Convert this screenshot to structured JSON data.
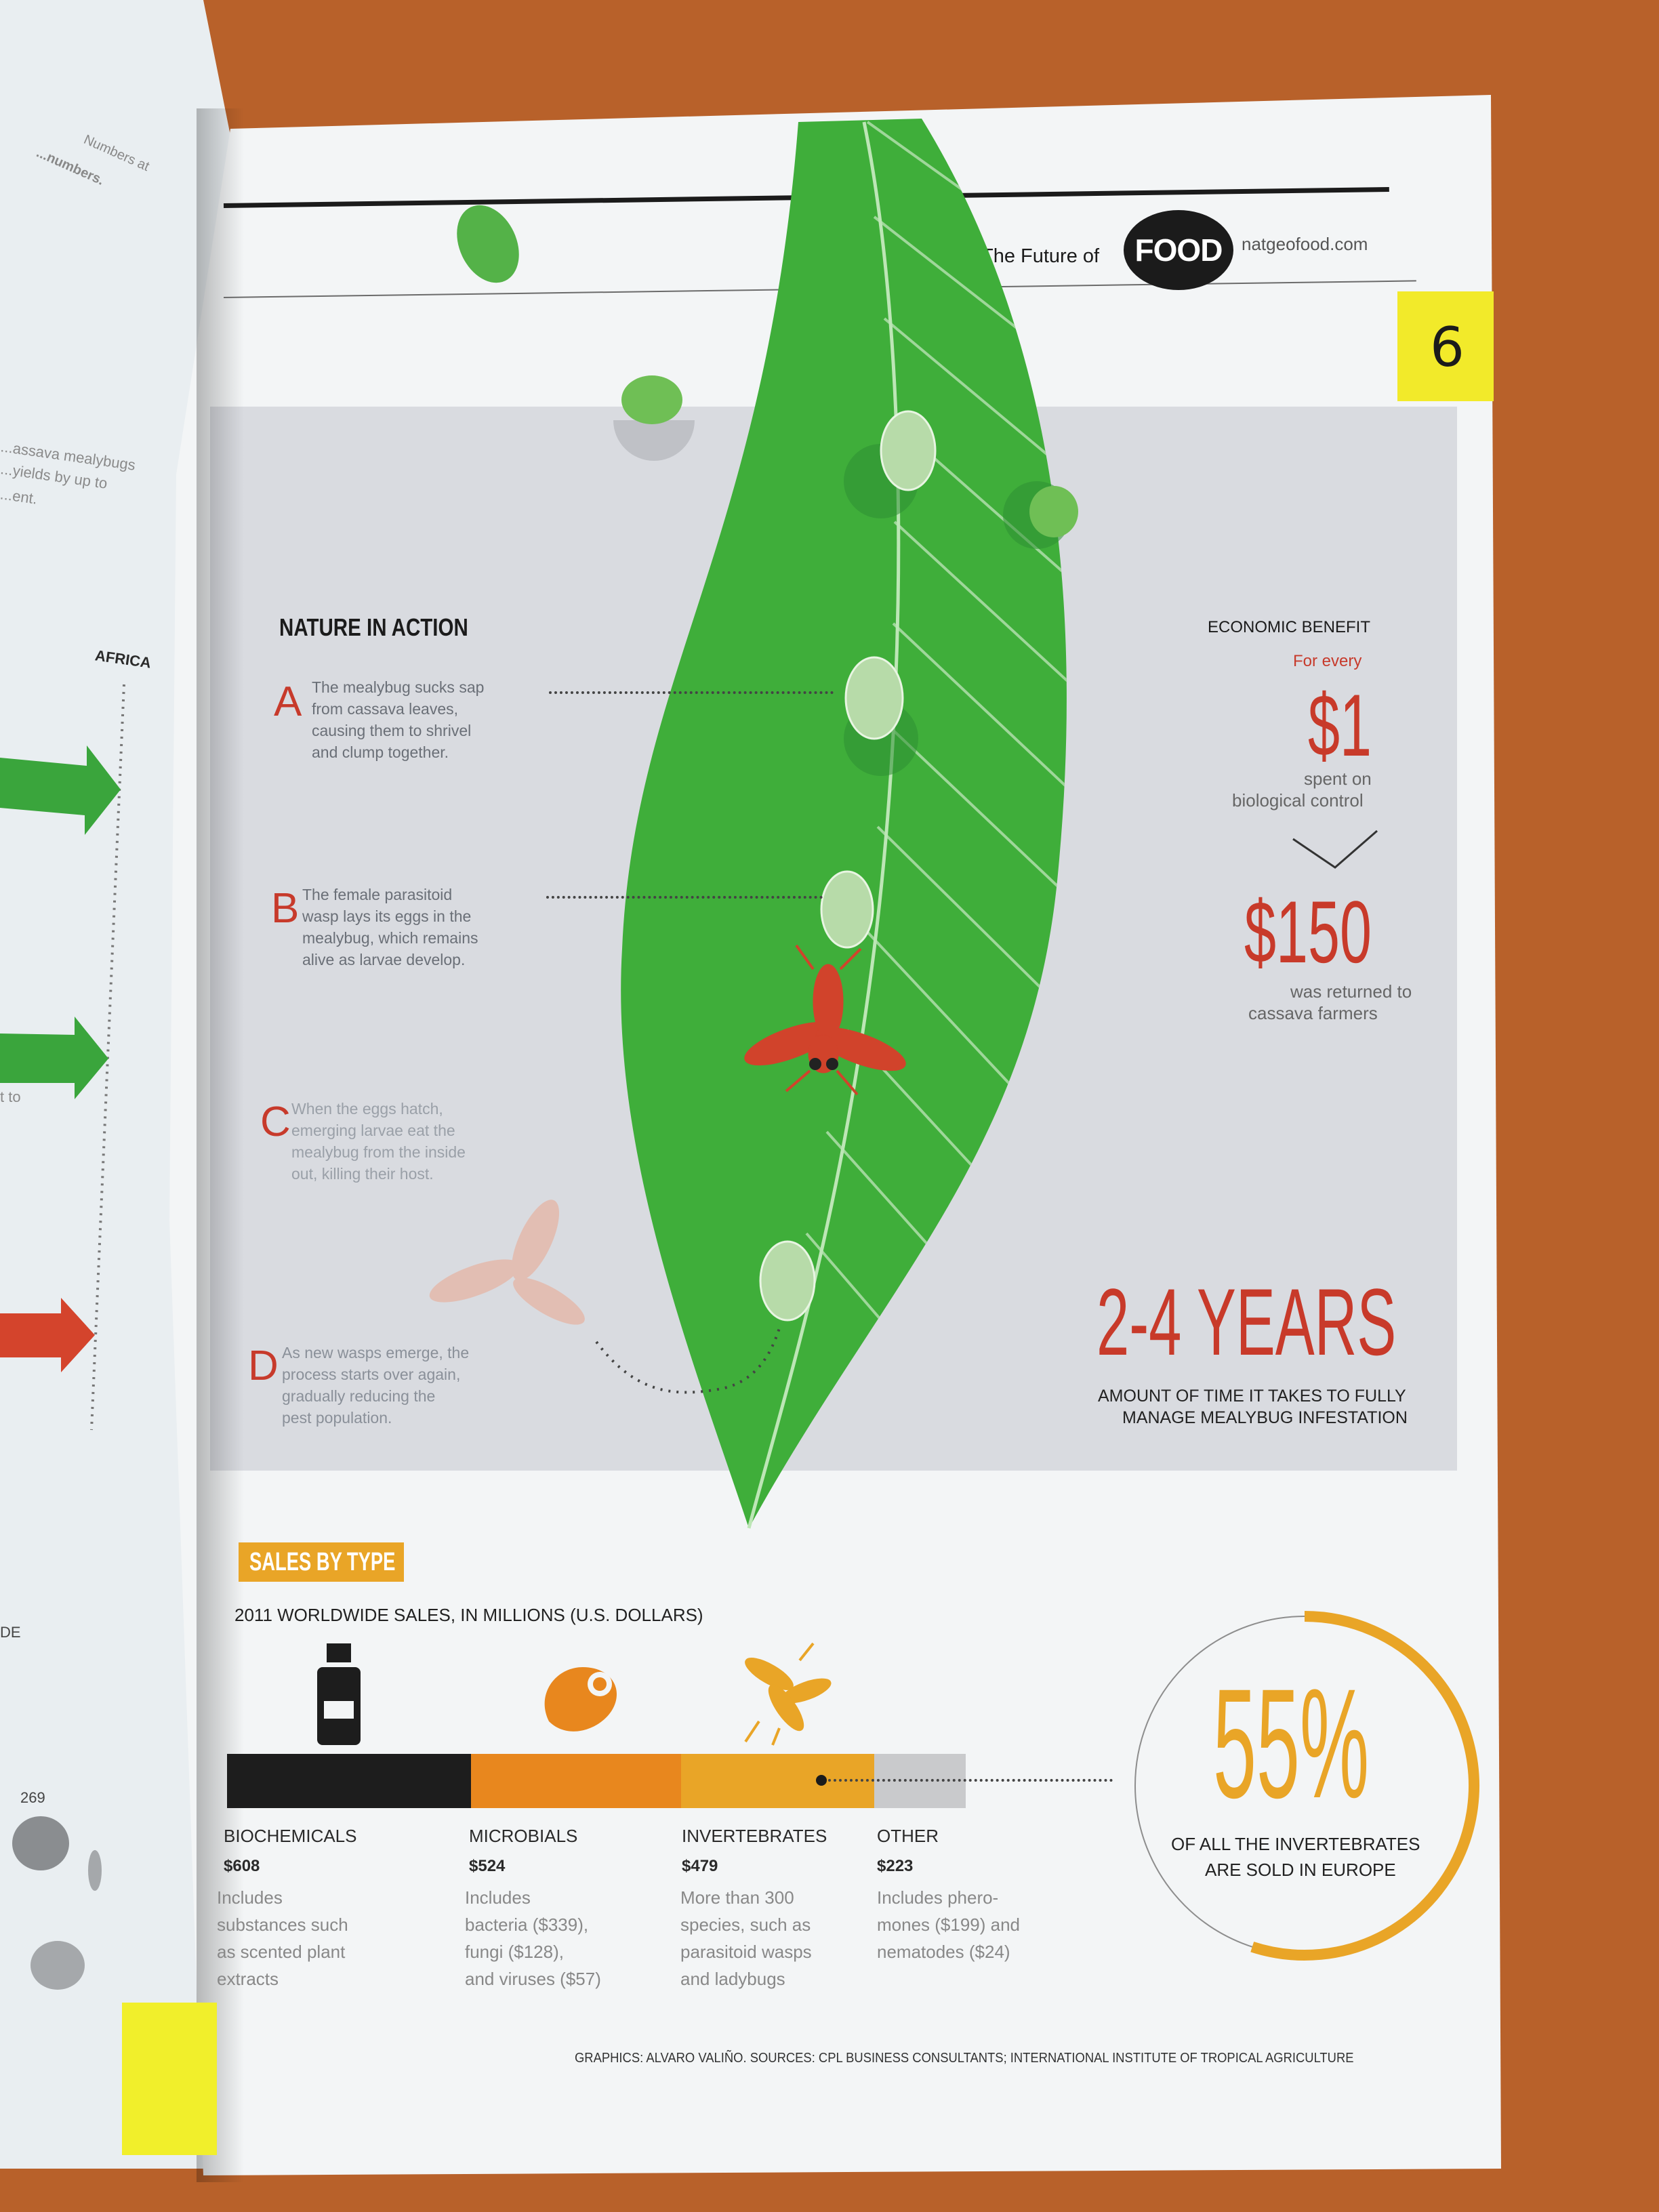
{
  "header": {
    "left_text": "The Future of",
    "badge": "FOOD",
    "site": "natgeofood.com"
  },
  "sticky_note": "6",
  "left_page": {
    "top_text_1": "Numbers at",
    "top_text_2": "...numbers.",
    "side_text_1": "...assava mealybugs",
    "side_text_2": "...yields by up to",
    "side_text_3": "...ent.",
    "africa_label": "AFRICA",
    "to_text": "t to",
    "de_text": "DE",
    "map_number": "269"
  },
  "nature": {
    "title": "NATURE IN ACTION",
    "steps": [
      {
        "letter": "A",
        "text": "The mealybug sucks sap\nfrom cassava leaves,\ncausing them to shrivel\nand clump together."
      },
      {
        "letter": "B",
        "text": "The female parasitoid\nwasp lays its eggs in the\nmealybug, which remains\nalive as larvae develop."
      },
      {
        "letter": "C",
        "text": "When the eggs hatch,\nemerging larvae eat the\nmealybug from the inside\nout, killing their host."
      },
      {
        "letter": "D",
        "text": "As new wasps emerge, the\nprocess starts over again,\ngradually reducing the\npest population."
      }
    ]
  },
  "economic": {
    "title": "ECONOMIC BENEFIT",
    "for_every": "For every",
    "amount1": "$1",
    "spent_1": "spent on",
    "spent_2": "biological control",
    "amount2": "$150",
    "returned_1": "was returned to",
    "returned_2": "cassava farmers"
  },
  "years": {
    "value": "2-4 YEARS",
    "caption_1": "AMOUNT OF TIME IT TAKES TO FULLY",
    "caption_2": "MANAGE MEALYBUG INFESTATION"
  },
  "sales": {
    "tag": "SALES BY TYPE",
    "subtitle": "2011 WORLDWIDE SALES, IN MILLIONS (U.S. DOLLARS)",
    "colors": {
      "biochemicals": "#1d1d1d",
      "microbials": "#e8871e",
      "invertebrates": "#e9a527",
      "other": "#c9cacc"
    },
    "categories": [
      {
        "name": "BIOCHEMICALS",
        "amount": "$608",
        "desc": "Includes\nsubstances such\nas scented plant\nextracts"
      },
      {
        "name": "MICROBIALS",
        "amount": "$524",
        "desc": "Includes\nbacteria ($339),\nfungi ($128),\nand viruses ($57)"
      },
      {
        "name": "INVERTEBRATES",
        "amount": "$479",
        "desc": "More than 300\nspecies, such as\nparasitoid wasps\nand ladybugs"
      },
      {
        "name": "OTHER",
        "amount": "$223",
        "desc": "Includes phero-\nmones ($199) and\nnematodes ($24)"
      }
    ]
  },
  "europe": {
    "percent": "55%",
    "share": 0.55,
    "caption_1": "OF ALL THE INVERTEBRATES",
    "caption_2": "ARE SOLD IN EUROPE"
  },
  "credits": "GRAPHICS: ALVARO VALIÑO. SOURCES: CPL BUSINESS CONSULTANTS; INTERNATIONAL INSTITUTE OF TROPICAL AGRICULTURE"
}
